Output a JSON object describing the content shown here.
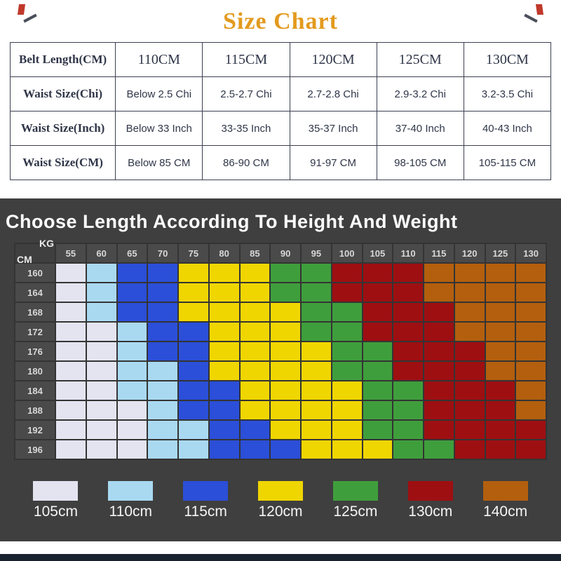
{
  "page": {
    "title": "Size Chart"
  },
  "size_table": {
    "header_label": "Belt Length(CM)",
    "header_values": [
      "110CM",
      "115CM",
      "120CM",
      "125CM",
      "130CM"
    ],
    "rows": [
      {
        "label": "Waist Size(Chi)",
        "values": [
          "Below 2.5 Chi",
          "2.5-2.7 Chi",
          "2.7-2.8 Chi",
          "2.9-3.2 Chi",
          "3.2-3.5 Chi"
        ]
      },
      {
        "label": "Waist Size(Inch)",
        "values": [
          "Below 33 Inch",
          "33-35 Inch",
          "35-37 Inch",
          "37-40 Inch",
          "40-43 Inch"
        ]
      },
      {
        "label": "Waist Size(CM)",
        "values": [
          "Below 85 CM",
          "86-90 CM",
          "91-97 CM",
          "98-105 CM",
          "105-115 CM"
        ]
      }
    ]
  },
  "heatmap": {
    "title": "Choose Length According To Height And Weight"
  },
  "chart_data": {
    "type": "heatmap",
    "title": "Choose Length According To Height And Weight",
    "x_label": "KG",
    "y_label": "CM",
    "columns": [
      55,
      60,
      65,
      70,
      75,
      80,
      85,
      90,
      95,
      100,
      105,
      110,
      115,
      120,
      125,
      130
    ],
    "rows": [
      160,
      164,
      168,
      172,
      176,
      180,
      184,
      188,
      192,
      196
    ],
    "cells": [
      [
        "105",
        "110",
        "115",
        "115",
        "120",
        "120",
        "120",
        "125",
        "125",
        "130",
        "130",
        "130",
        "140",
        "140",
        "140",
        "140"
      ],
      [
        "105",
        "110",
        "115",
        "115",
        "120",
        "120",
        "120",
        "125",
        "125",
        "130",
        "130",
        "130",
        "140",
        "140",
        "140",
        "140"
      ],
      [
        "105",
        "110",
        "115",
        "115",
        "120",
        "120",
        "120",
        "120",
        "125",
        "125",
        "130",
        "130",
        "130",
        "140",
        "140",
        "140"
      ],
      [
        "105",
        "105",
        "110",
        "115",
        "115",
        "120",
        "120",
        "120",
        "125",
        "125",
        "130",
        "130",
        "130",
        "140",
        "140",
        "140"
      ],
      [
        "105",
        "105",
        "110",
        "115",
        "115",
        "120",
        "120",
        "120",
        "120",
        "125",
        "125",
        "130",
        "130",
        "130",
        "140",
        "140"
      ],
      [
        "105",
        "105",
        "110",
        "110",
        "115",
        "120",
        "120",
        "120",
        "120",
        "125",
        "125",
        "130",
        "130",
        "130",
        "140",
        "140"
      ],
      [
        "105",
        "105",
        "110",
        "110",
        "115",
        "115",
        "120",
        "120",
        "120",
        "120",
        "125",
        "125",
        "130",
        "130",
        "130",
        "140"
      ],
      [
        "105",
        "105",
        "105",
        "110",
        "115",
        "115",
        "120",
        "120",
        "120",
        "120",
        "125",
        "125",
        "130",
        "130",
        "130",
        "140"
      ],
      [
        "105",
        "105",
        "105",
        "110",
        "110",
        "115",
        "115",
        "120",
        "120",
        "120",
        "125",
        "125",
        "130",
        "130",
        "130",
        "130"
      ],
      [
        "105",
        "105",
        "105",
        "110",
        "110",
        "115",
        "115",
        "115",
        "120",
        "120",
        "120",
        "125",
        "125",
        "130",
        "130",
        "130"
      ]
    ],
    "legend": [
      {
        "label": "105cm",
        "value": "105",
        "color": "#e3e4f0"
      },
      {
        "label": "110cm",
        "value": "110",
        "color": "#a9d9f1"
      },
      {
        "label": "115cm",
        "value": "115",
        "color": "#2b4fd8"
      },
      {
        "label": "120cm",
        "value": "120",
        "color": "#f0d600"
      },
      {
        "label": "125cm",
        "value": "125",
        "color": "#3f9e3c"
      },
      {
        "label": "130cm",
        "value": "130",
        "color": "#9e0f12"
      },
      {
        "label": "140cm",
        "value": "140",
        "color": "#b35f0e"
      }
    ]
  }
}
